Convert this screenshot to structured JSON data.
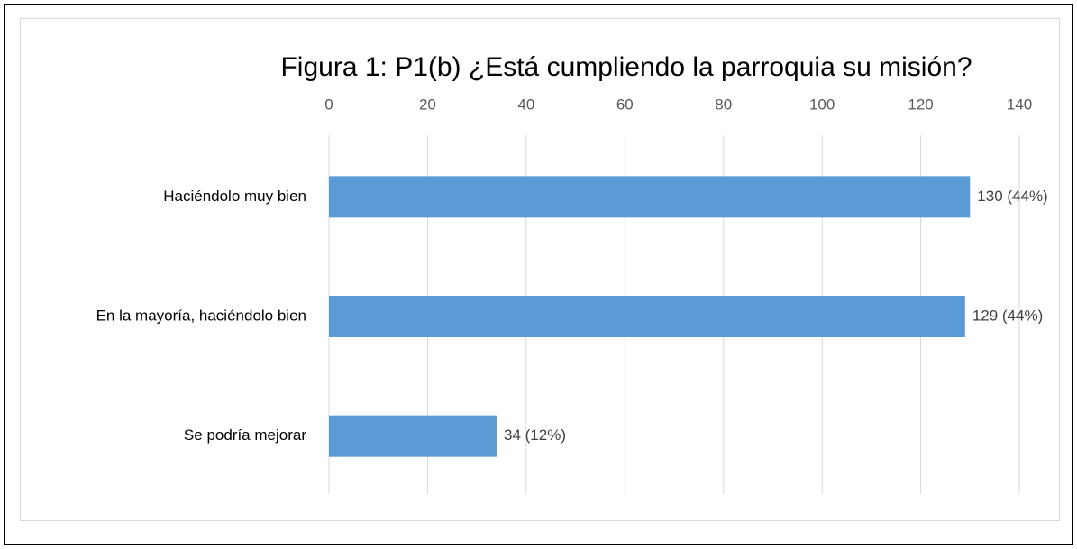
{
  "chart_data": {
    "type": "hbar",
    "title": "Figura 1:  P1(b) ¿Está cumpliendo la parroquia su misión?",
    "categories": [
      "Haciéndolo muy bien",
      "En la mayoría, haciéndolo bien",
      "Se podría mejorar"
    ],
    "values": [
      130,
      129,
      34
    ],
    "value_labels": [
      "130 (44%)",
      "129 (44%)",
      "34 (12%)"
    ],
    "color": "#5b9bd5",
    "xlim": [
      0,
      140
    ],
    "xticks": [
      0,
      20,
      40,
      60,
      80,
      100,
      120,
      140
    ],
    "grid": true
  }
}
